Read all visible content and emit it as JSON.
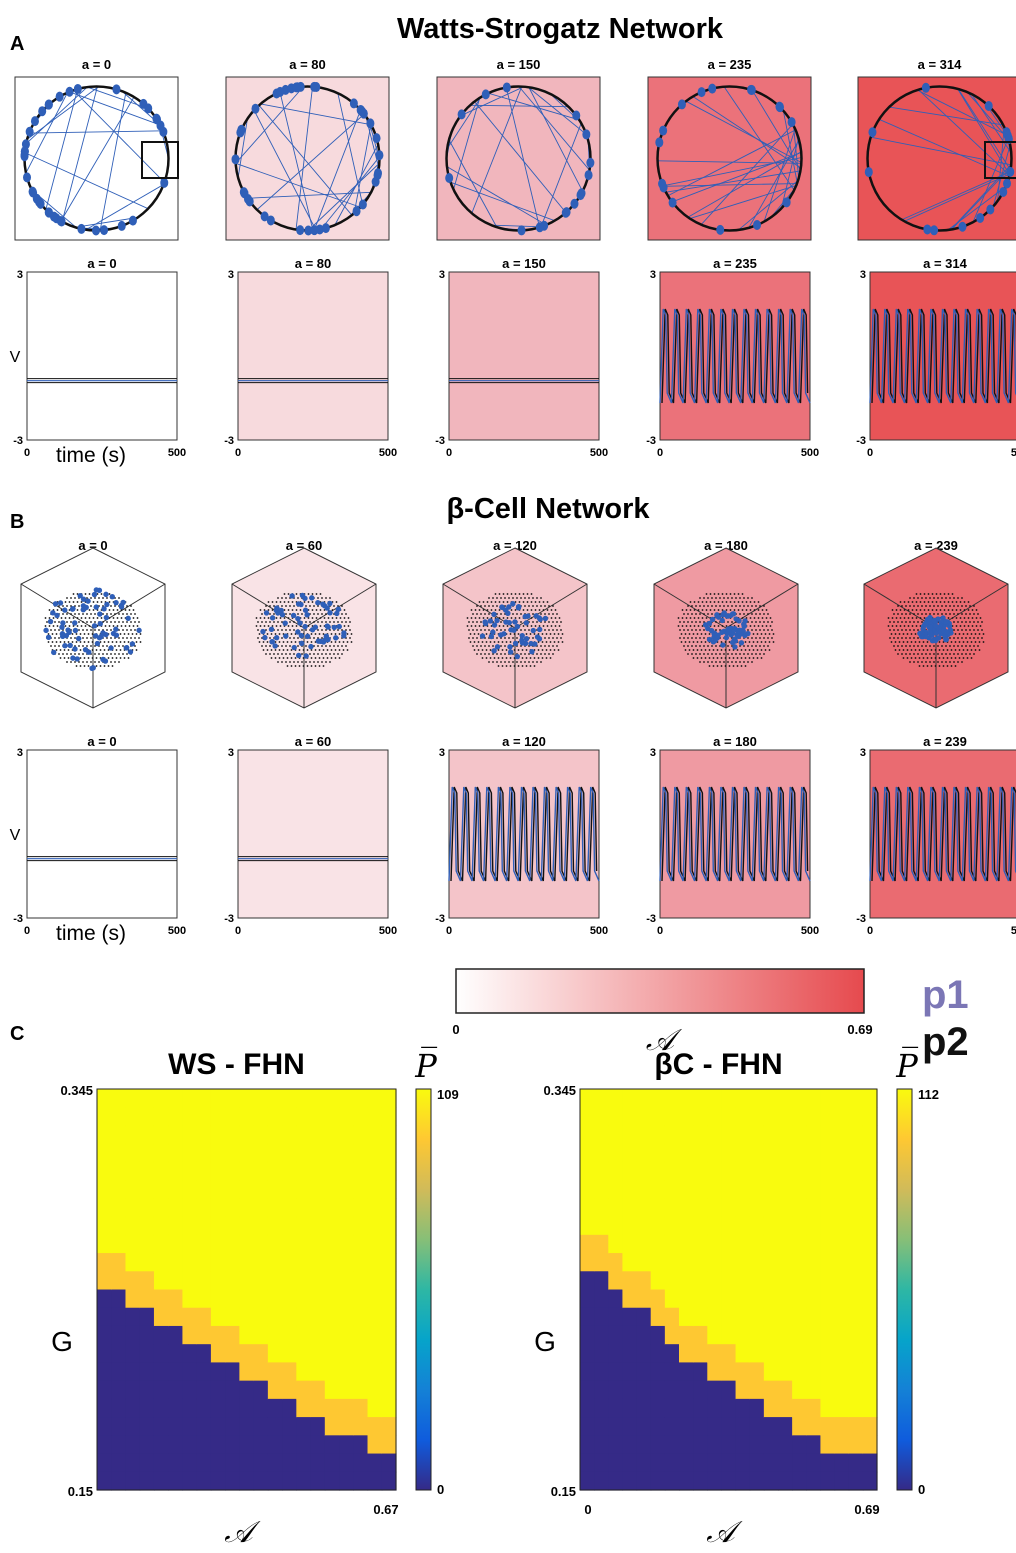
{
  "panel_letters": {
    "a": "A",
    "b": "B",
    "c": "C"
  },
  "panel_a": {
    "title": "Watts-Strogatz Network",
    "columns": [
      {
        "label": "a = 0",
        "fill": "#ffffff"
      },
      {
        "label": "a = 80",
        "fill": "#f7dadd"
      },
      {
        "label": "a = 150",
        "fill": "#f1b6bd"
      },
      {
        "label": "a = 235",
        "fill": "#eb727a"
      },
      {
        "label": "a = 314",
        "fill": "#e85457"
      }
    ],
    "ts_ylabel": "V",
    "ts_xlabel": "time (s)",
    "ts_yticks": [
      "3",
      "-3"
    ],
    "ts_xticks": [
      "0",
      "500"
    ]
  },
  "panel_b": {
    "title": "β-Cell Network",
    "columns": [
      {
        "label": "a = 0",
        "fill": "#ffffff"
      },
      {
        "label": "a = 60",
        "fill": "#f9e3e6"
      },
      {
        "label": "a = 120",
        "fill": "#f4c4c9"
      },
      {
        "label": "a = 180",
        "fill": "#ef9aa2"
      },
      {
        "label": "a = 239",
        "fill": "#ea6b71"
      }
    ],
    "ts_ylabel": "V",
    "ts_xlabel": "time (s)",
    "ts_yticks": [
      "3",
      "-3"
    ],
    "ts_xticks": [
      "0",
      "500"
    ]
  },
  "colorbar": {
    "min_label": "0",
    "max_label": "0.69",
    "symbol": "𝒜",
    "color_low": "#ffffff",
    "color_high": "#e64a4e",
    "legend_p1": "p1",
    "legend_p2": "p2",
    "p1_color": "#7b76b5",
    "p2_color": "#111111"
  },
  "panel_c": {
    "heatmaps": [
      {
        "title": "WS - FHN",
        "ylabel": "G",
        "xlabel": "𝒜",
        "ytick_top": "0.345",
        "ytick_bottom": "0.15",
        "xtick_left": "",
        "xtick_right": "0.67",
        "cbar_symbol": "P̅",
        "cbar_max": "109",
        "cbar_min": "0",
        "boundary_steps": [
          11,
          11,
          10,
          10,
          9,
          9,
          8,
          8,
          7,
          7,
          6,
          6,
          5,
          5,
          4,
          4,
          3,
          3,
          3,
          2,
          2
        ]
      },
      {
        "title": "βC - FHN",
        "ylabel": "G",
        "xlabel": "𝒜",
        "ytick_top": "0.345",
        "ytick_bottom": "0.15",
        "xtick_left": "0",
        "xtick_right": "0.69",
        "cbar_symbol": "P̅",
        "cbar_max": "112",
        "cbar_min": "0",
        "boundary_steps": [
          12,
          12,
          11,
          10,
          10,
          9,
          8,
          7,
          7,
          6,
          6,
          5,
          5,
          4,
          4,
          3,
          3,
          2,
          2,
          2,
          2
        ]
      }
    ],
    "colormap": [
      "#352a87",
      "#0f5cdd",
      "#1481d6",
      "#06a4ca",
      "#2eb7a4",
      "#87bf77",
      "#d1bb59",
      "#fec832",
      "#f9fb0e"
    ]
  }
}
